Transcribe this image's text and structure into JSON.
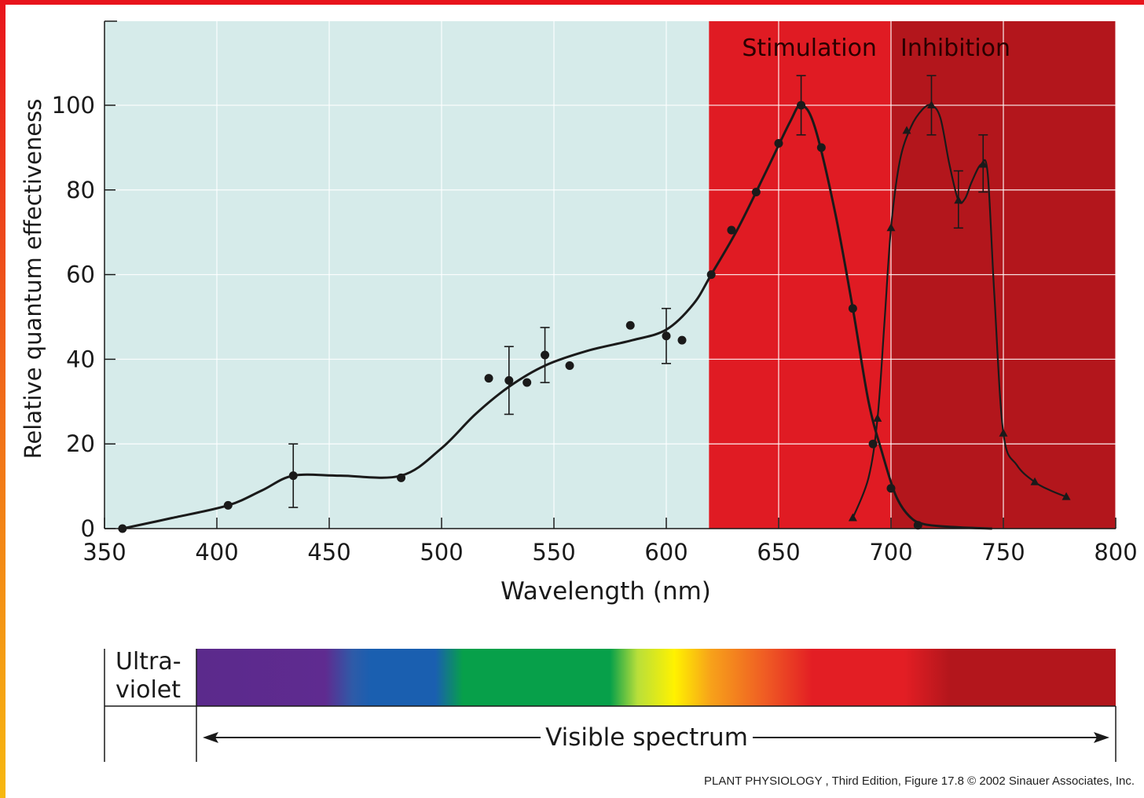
{
  "colors": {
    "frame": "#e8141c",
    "plot_background": "#d6ebea",
    "stimulation_band": "#e01b23",
    "inhibition_band": "#b3161c",
    "curve": "#1a1a1a"
  },
  "chart_data": {
    "type": "line",
    "xlabel": "Wavelength (nm)",
    "ylabel": "Relative quantum effectiveness",
    "xlim": [
      350,
      800
    ],
    "ylim": [
      0,
      100
    ],
    "x_ticks": [
      350,
      400,
      450,
      500,
      550,
      600,
      650,
      700,
      750,
      800
    ],
    "y_ticks": [
      0,
      20,
      40,
      60,
      80,
      100
    ],
    "grid": true,
    "regions": [
      {
        "label": "Stimulation",
        "from": 619,
        "to": 700
      },
      {
        "label": "Inhibition",
        "from": 700,
        "to": 800
      }
    ],
    "series": [
      {
        "marker": "circle",
        "points": [
          {
            "x": 358,
            "y": 0
          },
          {
            "x": 405,
            "y": 5.5
          },
          {
            "x": 434,
            "y": 12.5
          },
          {
            "x": 482,
            "y": 12
          },
          {
            "x": 521,
            "y": 35.5
          },
          {
            "x": 530,
            "y": 35
          },
          {
            "x": 538,
            "y": 34.5
          },
          {
            "x": 546,
            "y": 41
          },
          {
            "x": 557,
            "y": 38.5
          },
          {
            "x": 584,
            "y": 48
          },
          {
            "x": 600,
            "y": 45.5
          },
          {
            "x": 607,
            "y": 44.5
          },
          {
            "x": 620,
            "y": 60
          },
          {
            "x": 629,
            "y": 70.5
          },
          {
            "x": 640,
            "y": 79.5
          },
          {
            "x": 650,
            "y": 91
          },
          {
            "x": 660,
            "y": 100
          },
          {
            "x": 669,
            "y": 90
          },
          {
            "x": 683,
            "y": 52
          },
          {
            "x": 692,
            "y": 20
          },
          {
            "x": 700,
            "y": 9.5
          },
          {
            "x": 712,
            "y": 0.8
          }
        ],
        "curve": [
          [
            358,
            0
          ],
          [
            380,
            2.5
          ],
          [
            405,
            5.5
          ],
          [
            420,
            9
          ],
          [
            434,
            12.5
          ],
          [
            455,
            12.5
          ],
          [
            482,
            12.5
          ],
          [
            500,
            19
          ],
          [
            515,
            27
          ],
          [
            530,
            33.5
          ],
          [
            546,
            38.5
          ],
          [
            565,
            42
          ],
          [
            585,
            44.5
          ],
          [
            600,
            47
          ],
          [
            612,
            53
          ],
          [
            620,
            60
          ],
          [
            632,
            71
          ],
          [
            645,
            85
          ],
          [
            655,
            96
          ],
          [
            660,
            100
          ],
          [
            666,
            95
          ],
          [
            675,
            75
          ],
          [
            683,
            52
          ],
          [
            690,
            30
          ],
          [
            696,
            18
          ],
          [
            702,
            8
          ],
          [
            708,
            3
          ],
          [
            715,
            1
          ],
          [
            730,
            0.3
          ],
          [
            745,
            0
          ]
        ],
        "error_bars": [
          {
            "x": 434,
            "y": 12.5,
            "low": 5,
            "high": 20
          },
          {
            "x": 530,
            "y": 35,
            "low": 27,
            "high": 43
          },
          {
            "x": 546,
            "y": 41,
            "low": 34.5,
            "high": 47.5
          },
          {
            "x": 600,
            "y": 45.5,
            "low": 39,
            "high": 52
          },
          {
            "x": 660,
            "y": 100,
            "low": 93,
            "high": 107
          }
        ]
      },
      {
        "marker": "triangle",
        "points": [
          {
            "x": 683,
            "y": 2.5
          },
          {
            "x": 694,
            "y": 26
          },
          {
            "x": 700,
            "y": 71
          },
          {
            "x": 707,
            "y": 94
          },
          {
            "x": 718,
            "y": 100
          },
          {
            "x": 730,
            "y": 77.5
          },
          {
            "x": 741,
            "y": 86
          },
          {
            "x": 750,
            "y": 22.5
          },
          {
            "x": 764,
            "y": 11
          },
          {
            "x": 778,
            "y": 7.5
          }
        ],
        "curve": [
          [
            683,
            2.5
          ],
          [
            690,
            12
          ],
          [
            694,
            26
          ],
          [
            697,
            48
          ],
          [
            700,
            71
          ],
          [
            704,
            87
          ],
          [
            709,
            95
          ],
          [
            714,
            99
          ],
          [
            718,
            100
          ],
          [
            722,
            97
          ],
          [
            726,
            86
          ],
          [
            730,
            77.5
          ],
          [
            733,
            78
          ],
          [
            736,
            82
          ],
          [
            740,
            86
          ],
          [
            743,
            84
          ],
          [
            746,
            55
          ],
          [
            750,
            22.5
          ],
          [
            756,
            15
          ],
          [
            764,
            11
          ],
          [
            771,
            9
          ],
          [
            778,
            7.5
          ]
        ],
        "error_bars": [
          {
            "x": 718,
            "y": 100,
            "low": 93,
            "high": 107
          },
          {
            "x": 730,
            "y": 77.5,
            "low": 71,
            "high": 84.5
          },
          {
            "x": 741,
            "y": 86,
            "low": 79.5,
            "high": 93
          }
        ]
      }
    ]
  },
  "spectrum": {
    "uv_label_line1": "Ultra-",
    "uv_label_line2": "violet",
    "visible_label": "Visible spectrum",
    "stops": [
      {
        "at": 0.0,
        "color": "#5b2a8c"
      },
      {
        "at": 0.14,
        "color": "#5f2b90"
      },
      {
        "at": 0.17,
        "color": "#2e5ba8"
      },
      {
        "at": 0.19,
        "color": "#1a5fb0"
      },
      {
        "at": 0.26,
        "color": "#1a5fb0"
      },
      {
        "at": 0.29,
        "color": "#07a04a"
      },
      {
        "at": 0.45,
        "color": "#07a04a"
      },
      {
        "at": 0.48,
        "color": "#b9df3a"
      },
      {
        "at": 0.52,
        "color": "#fff200"
      },
      {
        "at": 0.56,
        "color": "#f7a11a"
      },
      {
        "at": 0.62,
        "color": "#ef5a24"
      },
      {
        "at": 0.67,
        "color": "#e31e24"
      },
      {
        "at": 0.77,
        "color": "#e31e24"
      },
      {
        "at": 0.82,
        "color": "#b3161c"
      },
      {
        "at": 1.0,
        "color": "#b3161c"
      }
    ]
  },
  "caption": "PLANT PHYSIOLOGY , Third Edition, Figure 17.8  © 2002 Sinauer Associates, Inc."
}
